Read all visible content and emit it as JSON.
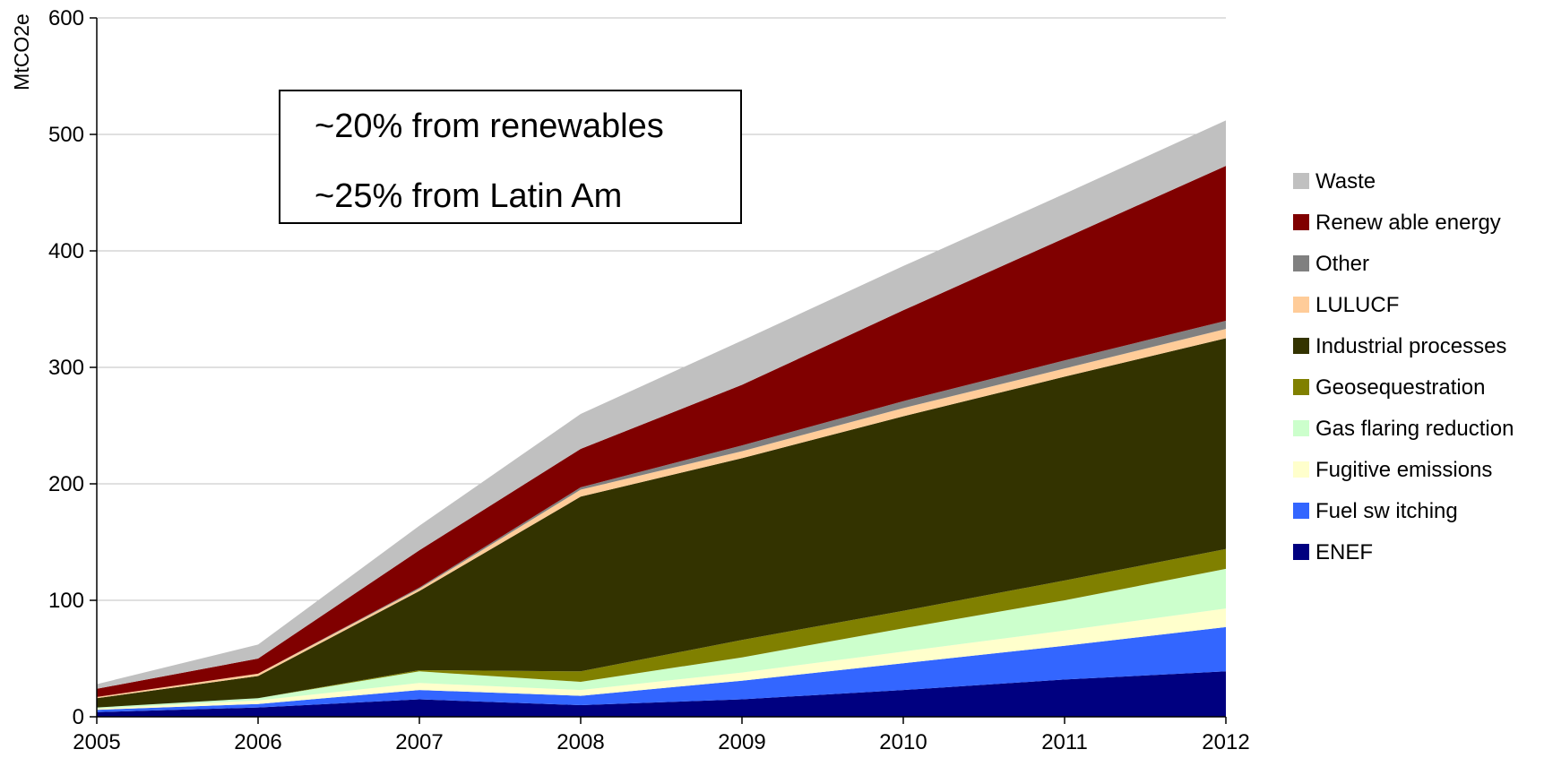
{
  "chart_data": {
    "type": "area",
    "stacked": true,
    "title": "",
    "xlabel": "",
    "ylabel": "MtCO2e",
    "x": [
      2005,
      2006,
      2007,
      2008,
      2009,
      2010,
      2011,
      2012
    ],
    "ylim": [
      0,
      600
    ],
    "yticks": [
      0,
      100,
      200,
      300,
      400,
      500,
      600
    ],
    "grid": "horizontal",
    "legend_position": "right",
    "series": [
      {
        "name": "ENEF",
        "color": "#000080",
        "values": [
          4,
          8,
          15,
          10,
          15,
          23,
          32,
          39
        ]
      },
      {
        "name": "Fuel sw itching",
        "color": "#3366FF",
        "values": [
          2,
          3,
          8,
          8,
          16,
          23,
          29,
          38
        ]
      },
      {
        "name": "Fugitive emissions",
        "color": "#FFFFCC",
        "values": [
          1,
          3,
          6,
          5,
          7,
          10,
          13,
          16
        ]
      },
      {
        "name": "Gas flaring reduction",
        "color": "#CCFFCC",
        "values": [
          1,
          2,
          10,
          7,
          13,
          20,
          26,
          34
        ]
      },
      {
        "name": "Geosequestration",
        "color": "#808000",
        "values": [
          0,
          0,
          1,
          9,
          15,
          15,
          17,
          17
        ]
      },
      {
        "name": "Industrial processes",
        "color": "#333300",
        "values": [
          8,
          19,
          68,
          150,
          156,
          167,
          175,
          181
        ]
      },
      {
        "name": "LULUCF",
        "color": "#FFCC99",
        "values": [
          1,
          2,
          2,
          6,
          6,
          7,
          7,
          8
        ]
      },
      {
        "name": "Other",
        "color": "#808080",
        "values": [
          0,
          0,
          1,
          2,
          5,
          6,
          7,
          7
        ]
      },
      {
        "name": "Renew able energy",
        "color": "#800000",
        "values": [
          7,
          13,
          32,
          33,
          52,
          78,
          105,
          133
        ]
      },
      {
        "name": "Waste",
        "color": "#C0C0C0",
        "values": [
          4,
          12,
          21,
          30,
          38,
          38,
          38,
          39
        ]
      }
    ],
    "annotations": [
      "~20% from renewables",
      "~25% from Latin Am"
    ]
  }
}
